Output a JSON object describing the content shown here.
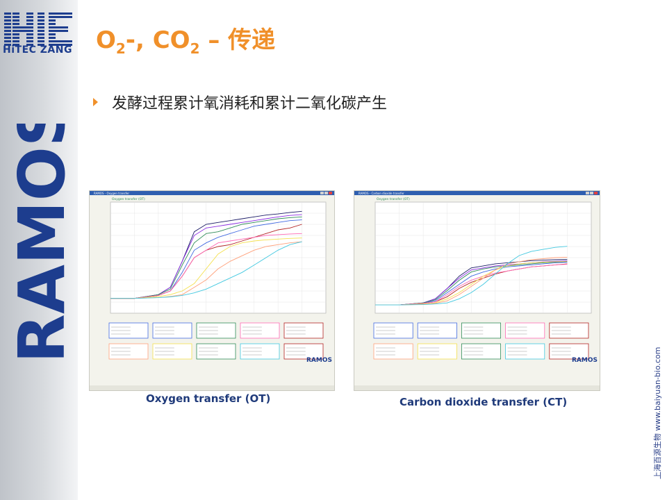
{
  "brand": {
    "logo_text": "HiTEC ZANG",
    "ramos_text": "RAMOS",
    "color_blue": "#1d3d8e"
  },
  "slide": {
    "title_o": "O",
    "title_o_sub": "2",
    "title_mid": "-, CO",
    "title_co_sub": "2",
    "title_end": " – 传递",
    "bullet": "发酵过程累计氧消耗和累计二氧化碳产生",
    "accent_color": "#f0902a"
  },
  "figures": {
    "left": {
      "caption": "Oxygen transfer (OT)",
      "window_title": "RAMOS - Oxygen transfer",
      "chart_title": "Oxygen transfer (OT)",
      "footer_logo": "RAMOS"
    },
    "right": {
      "caption": "Carbon dioxide transfer (CT)",
      "window_title": "RAMOS - Carbon dioxide transfer",
      "chart_title": "Oxygen transfer (OT)",
      "footer_logo": "RAMOS"
    }
  },
  "credit": "上海百源生物 www.baiyuan-bio.com",
  "chart_data": [
    {
      "type": "line",
      "title": "Oxygen transfer (OT)",
      "xlim": [
        0,
        72
      ],
      "ylim": [
        -0.04,
        0.26
      ],
      "x": [
        0,
        8,
        16,
        20,
        24,
        28,
        32,
        36,
        40,
        44,
        48,
        52,
        56,
        60,
        64
      ],
      "series": [
        {
          "color": "#1a1a66",
          "values": [
            0.0,
            0.0,
            0.01,
            0.03,
            0.1,
            0.18,
            0.2,
            0.205,
            0.21,
            0.215,
            0.22,
            0.225,
            0.228,
            0.232,
            0.235
          ]
        },
        {
          "color": "#8a2be2",
          "values": [
            0.0,
            0.0,
            0.01,
            0.03,
            0.1,
            0.17,
            0.19,
            0.195,
            0.2,
            0.205,
            0.21,
            0.215,
            0.22,
            0.224,
            0.226
          ]
        },
        {
          "color": "#2e8b57",
          "values": [
            0.0,
            0.0,
            0.01,
            0.025,
            0.09,
            0.15,
            0.175,
            0.18,
            0.19,
            0.2,
            0.205,
            0.21,
            0.215,
            0.218,
            0.22
          ]
        },
        {
          "color": "#4169e1",
          "values": [
            0.0,
            0.0,
            0.008,
            0.02,
            0.07,
            0.13,
            0.15,
            0.165,
            0.175,
            0.185,
            0.195,
            0.2,
            0.205,
            0.21,
            0.212
          ]
        },
        {
          "color": "#b22222",
          "values": [
            0.0,
            0.0,
            0.008,
            0.02,
            0.06,
            0.11,
            0.13,
            0.14,
            0.145,
            0.155,
            0.165,
            0.175,
            0.185,
            0.19,
            0.2
          ]
        },
        {
          "color": "#ff69b4",
          "values": [
            0.0,
            0.0,
            0.008,
            0.02,
            0.06,
            0.11,
            0.13,
            0.15,
            0.155,
            0.16,
            0.165,
            0.17,
            0.172,
            0.174,
            0.175
          ]
        },
        {
          "color": "#f4e04d",
          "values": [
            0.0,
            0.0,
            0.005,
            0.01,
            0.02,
            0.04,
            0.08,
            0.12,
            0.14,
            0.15,
            0.155,
            0.158,
            0.16,
            0.162,
            0.163
          ]
        },
        {
          "color": "#ffa07a",
          "values": [
            0.0,
            0.0,
            0.002,
            0.005,
            0.01,
            0.03,
            0.05,
            0.08,
            0.1,
            0.115,
            0.13,
            0.14,
            0.145,
            0.15,
            0.153
          ]
        },
        {
          "color": "#40c8e0",
          "values": [
            0.0,
            0.0,
            0.002,
            0.004,
            0.008,
            0.015,
            0.025,
            0.04,
            0.055,
            0.07,
            0.09,
            0.11,
            0.13,
            0.145,
            0.153
          ]
        }
      ]
    },
    {
      "type": "line",
      "title": "Oxygen transfer (OT)",
      "xlim": [
        0,
        72
      ],
      "ylim": [
        -0.04,
        0.5
      ],
      "x": [
        0,
        8,
        16,
        20,
        24,
        28,
        32,
        36,
        40,
        44,
        48,
        52,
        56,
        60,
        64
      ],
      "series": [
        {
          "color": "#1a1a66",
          "values": [
            0.0,
            0.0,
            0.01,
            0.03,
            0.08,
            0.14,
            0.18,
            0.19,
            0.2,
            0.205,
            0.21,
            0.215,
            0.218,
            0.22,
            0.222
          ]
        },
        {
          "color": "#8a2be2",
          "values": [
            0.0,
            0.0,
            0.01,
            0.03,
            0.08,
            0.13,
            0.17,
            0.18,
            0.19,
            0.195,
            0.2,
            0.205,
            0.21,
            0.212,
            0.215
          ]
        },
        {
          "color": "#2e8b57",
          "values": [
            0.0,
            0.0,
            0.01,
            0.025,
            0.07,
            0.12,
            0.16,
            0.175,
            0.185,
            0.19,
            0.195,
            0.2,
            0.205,
            0.208,
            0.21
          ]
        },
        {
          "color": "#4169e1",
          "values": [
            0.0,
            0.0,
            0.008,
            0.02,
            0.06,
            0.1,
            0.14,
            0.16,
            0.175,
            0.185,
            0.19,
            0.195,
            0.2,
            0.205,
            0.208
          ]
        },
        {
          "color": "#b22222",
          "values": [
            0.0,
            0.0,
            0.008,
            0.015,
            0.04,
            0.08,
            0.11,
            0.13,
            0.15,
            0.165,
            0.175,
            0.185,
            0.19,
            0.195,
            0.2
          ]
        },
        {
          "color": "#ff69b4",
          "values": [
            0.0,
            0.0,
            0.008,
            0.015,
            0.05,
            0.09,
            0.12,
            0.14,
            0.155,
            0.165,
            0.175,
            0.185,
            0.19,
            0.195,
            0.198
          ]
        },
        {
          "color": "#f4e04d",
          "values": [
            0.0,
            0.0,
            0.005,
            0.01,
            0.03,
            0.06,
            0.1,
            0.14,
            0.17,
            0.19,
            0.2,
            0.205,
            0.208,
            0.21,
            0.212
          ]
        },
        {
          "color": "#ffa07a",
          "values": [
            0.0,
            0.0,
            0.003,
            0.008,
            0.02,
            0.05,
            0.09,
            0.13,
            0.17,
            0.2,
            0.21,
            0.22,
            0.225,
            0.23,
            0.232
          ]
        },
        {
          "color": "#40c8e0",
          "values": [
            0.0,
            0.0,
            0.002,
            0.005,
            0.01,
            0.03,
            0.06,
            0.1,
            0.15,
            0.2,
            0.24,
            0.26,
            0.27,
            0.28,
            0.285
          ]
        }
      ]
    }
  ]
}
